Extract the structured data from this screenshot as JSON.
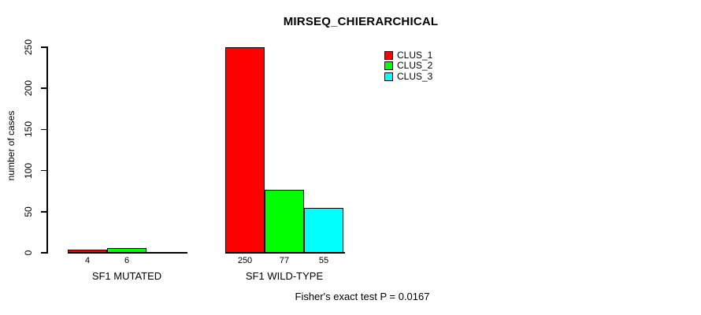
{
  "chart_data": {
    "type": "bar",
    "title": "MIRSEQ_CHIERARCHICAL",
    "ylabel": "number of cases",
    "xlabel": "",
    "ylim": [
      0,
      250
    ],
    "yticks": [
      0,
      50,
      100,
      150,
      200,
      250
    ],
    "grid": false,
    "legend_position": "top-right",
    "categories": [
      "SF1 MUTATED",
      "SF1 WILD-TYPE"
    ],
    "series": [
      {
        "name": "CLUS_1",
        "color": "#ff0000",
        "values": [
          4,
          250
        ]
      },
      {
        "name": "CLUS_2",
        "color": "#00ff00",
        "values": [
          6,
          77
        ]
      },
      {
        "name": "CLUS_3",
        "color": "#00ffff",
        "values": [
          0,
          55
        ]
      }
    ],
    "bar_value_labels": [
      [
        "4",
        "6",
        ""
      ],
      [
        "250",
        "77",
        "55"
      ]
    ],
    "annotation": "Fisher's exact test P = 0.0167"
  },
  "colors": {
    "background": "#ffffff",
    "axis": "#000000"
  }
}
